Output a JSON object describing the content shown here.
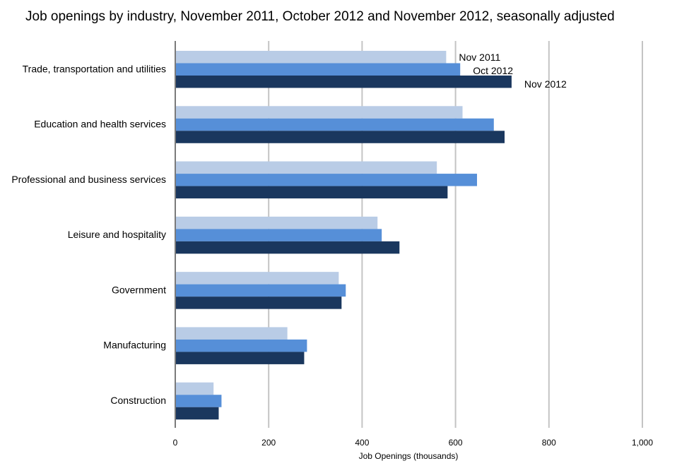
{
  "chart_data": {
    "type": "bar",
    "orientation": "horizontal",
    "title": "Job openings by industry, November 2011, October 2012 and November 2012, seasonally adjusted",
    "xlabel": "Job Openings (thousands)",
    "ylabel": "",
    "xlim": [
      0,
      1000
    ],
    "xticks": [
      0,
      200,
      400,
      600,
      800,
      1000
    ],
    "xtick_labels": [
      "0",
      "200",
      "400",
      "600",
      "800",
      "1,000"
    ],
    "grid": true,
    "categories": [
      "Trade, transportation and utilities",
      "Education and health services",
      "Professional and business services",
      "Leisure and hospitality",
      "Government",
      "Manufacturing",
      "Construction"
    ],
    "series": [
      {
        "name": "Nov 2011",
        "color": "#b9cce6",
        "values": [
          580,
          615,
          560,
          433,
          350,
          240,
          82
        ]
      },
      {
        "name": "Oct 2012",
        "color": "#568fd8",
        "values": [
          610,
          682,
          646,
          442,
          365,
          282,
          99
        ]
      },
      {
        "name": "Nov 2012",
        "color": "#1a375e",
        "values": [
          720,
          705,
          583,
          480,
          356,
          276,
          93
        ]
      }
    ],
    "legend_placement": "inline-first-group"
  }
}
